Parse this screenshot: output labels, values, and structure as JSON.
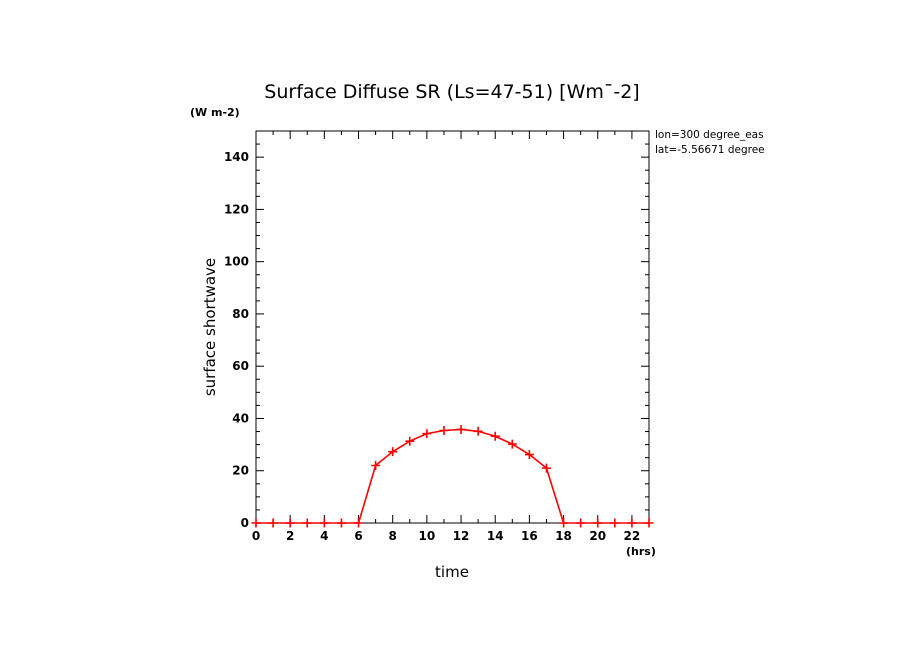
{
  "chart_data": {
    "type": "line",
    "title": "Surface Diffuse SR (Ls=47-51) [Wm¯-2]",
    "xlabel": "time",
    "ylabel": "surface shortwave",
    "x_unit": "(hrs)",
    "y_unit": "(W m-2)",
    "xlim": [
      0,
      23
    ],
    "ylim": [
      0,
      150
    ],
    "x_ticks": [
      0,
      2,
      4,
      6,
      8,
      10,
      12,
      14,
      16,
      18,
      20,
      22
    ],
    "y_ticks": [
      0,
      20,
      40,
      60,
      80,
      100,
      120,
      140
    ],
    "annotations": [
      "lon=300 degree_eas",
      "lat=-5.56671 degree"
    ],
    "series_color": "#ff0000",
    "series": [
      {
        "x": [
          0,
          1,
          2,
          3,
          4,
          5,
          6,
          7,
          8,
          9,
          10,
          11,
          12,
          13,
          14,
          15,
          16,
          17,
          18,
          19,
          20,
          21,
          22,
          23
        ],
        "values": [
          0,
          0,
          0,
          0,
          0,
          0,
          0,
          22,
          27.3,
          31.3,
          34.2,
          35.4,
          35.8,
          35.1,
          33.2,
          30.2,
          26.2,
          21,
          0,
          0,
          0,
          0,
          0,
          0
        ]
      }
    ]
  }
}
